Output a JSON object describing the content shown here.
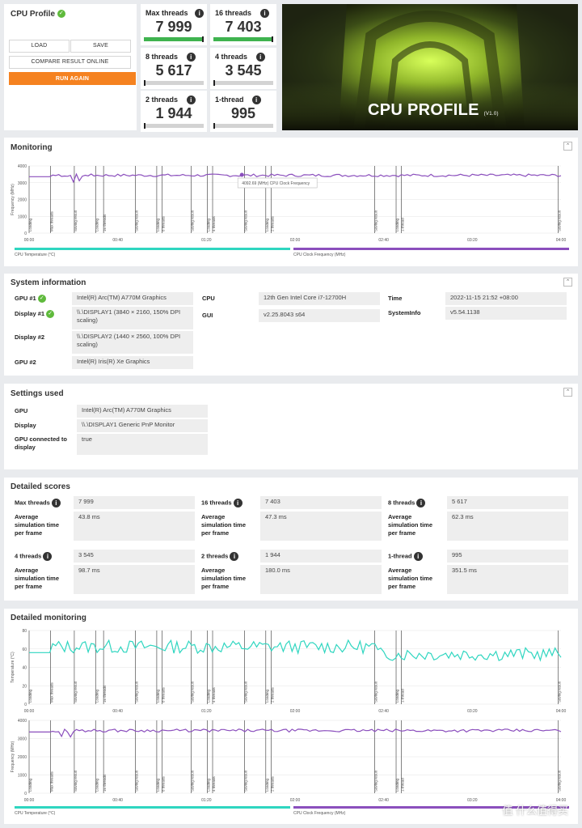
{
  "profile": {
    "title": "CPU Profile",
    "load": "LOAD",
    "save": "SAVE",
    "compare": "COMPARE RESULT ONLINE",
    "run_again": "RUN AGAIN"
  },
  "score_tiles": [
    {
      "label": "Max threads",
      "value": "7 999",
      "fill": 0.97
    },
    {
      "label": "16 threads",
      "value": "7 403",
      "fill": 0.97
    },
    {
      "label": "8 threads",
      "value": "5 617",
      "fill": 0.0
    },
    {
      "label": "4 threads",
      "value": "3 545",
      "fill": 0.0
    },
    {
      "label": "2 threads",
      "value": "1 944",
      "fill": 0.0
    },
    {
      "label": "1-thread",
      "value": "995",
      "fill": 0.0
    }
  ],
  "banner": {
    "title": "CPU PROFILE",
    "version": "(V1.0)"
  },
  "monitoring": {
    "title": "Monitoring",
    "y_label": "Frequency (MHz)",
    "y_ticks": [
      "4000",
      "3000",
      "2000",
      "1000",
      "0"
    ],
    "x_ticks": [
      "00:00",
      "00:40",
      "01:20",
      "02:00",
      "02:40",
      "03:20",
      "04:00"
    ],
    "tooltip": "4092.69 (MHz) CPU Clock Frequency",
    "markers": [
      "Loading",
      "Max threads",
      "Saving result",
      "Loading",
      "16 threads",
      "Saving result",
      "Loading",
      "8 threads",
      "Saving result",
      "Loading",
      "4 threads",
      "Saving result",
      "Loading",
      "2 threads",
      "Saving result",
      "Loading",
      "1-thread",
      "Saving result"
    ],
    "legend": {
      "temp": "CPU Temperature (°C)",
      "clock": "CPU Clock Frequency (MHz)"
    }
  },
  "system": {
    "title": "System information",
    "rows": [
      {
        "k": "GPU #1",
        "v": "Intel(R) Arc(TM) A770M Graphics"
      },
      {
        "k": "Display #1",
        "v": "\\\\.\\DISPLAY1 (3840 × 2160, 150% DPI scaling)"
      },
      {
        "k": "Display #2",
        "v": "\\\\.\\DISPLAY2 (1440 × 2560, 100% DPI scaling)"
      },
      {
        "k": "GPU #2",
        "v": "Intel(R) Iris(R) Xe Graphics"
      }
    ],
    "cpu_k": "CPU",
    "cpu_v": "12th Gen Intel Core i7-12700H",
    "gui_k": "GUI",
    "gui_v": "v2.25.8043 s64",
    "time_k": "Time",
    "time_v": "2022-11-15 21:52 +08:00",
    "sysinfo_k": "SystemInfo",
    "sysinfo_v": "v5.54.1138"
  },
  "settings": {
    "title": "Settings used",
    "rows": [
      {
        "k": "GPU",
        "v": "Intel(R) Arc(TM) A770M Graphics"
      },
      {
        "k": "Display",
        "v": "\\\\.\\DISPLAY1 Generic PnP Monitor"
      },
      {
        "k": "GPU connected to display",
        "v": "true"
      }
    ]
  },
  "detailed_scores": {
    "title": "Detailed scores",
    "avg_label": "Average simulation time per frame",
    "items": [
      {
        "label": "Max threads",
        "score": "7 999",
        "avg": "43.8 ms"
      },
      {
        "label": "16 threads",
        "score": "7 403",
        "avg": "47.3 ms"
      },
      {
        "label": "8 threads",
        "score": "5 617",
        "avg": "62.3 ms"
      },
      {
        "label": "4 threads",
        "score": "3 545",
        "avg": "98.7 ms"
      },
      {
        "label": "2 threads",
        "score": "1 944",
        "avg": "180.0 ms"
      },
      {
        "label": "1-thread",
        "score": "995",
        "avg": "351.5 ms"
      }
    ]
  },
  "detailed_monitoring": {
    "title": "Detailed monitoring",
    "temp_y_label": "Temperature (°C)",
    "temp_ticks": [
      "80",
      "60",
      "40",
      "20",
      "0"
    ],
    "freq_y_label": "Frequency (MHz)",
    "freq_ticks": [
      "4000",
      "3000",
      "2000",
      "1000",
      "0"
    ],
    "legend": {
      "temp": "CPU Temperature (°C)",
      "clock": "CPU Clock Frequency (MHz)"
    }
  },
  "watermark": "值 什么值得买",
  "colors": {
    "accent": "#f58220",
    "green": "#3fb34f",
    "temp": "#2fd6c0",
    "clock": "#8b4fbd"
  }
}
